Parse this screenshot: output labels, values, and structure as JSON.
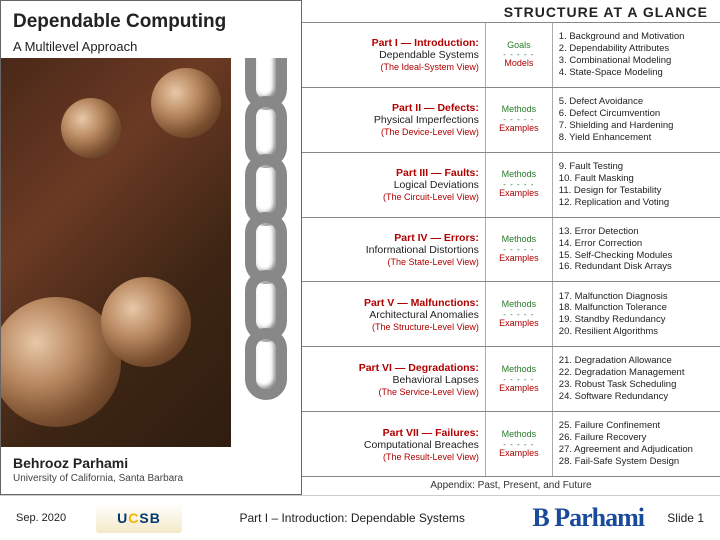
{
  "left": {
    "title": "Dependable Computing",
    "subtitle": "A Multilevel Approach",
    "author": "Behrooz Parhami",
    "affiliation": "University of California, Santa Barbara"
  },
  "right": {
    "header": "STRUCTURE AT A GLANCE",
    "appendix": "Appendix: Past, Present, and Future",
    "parts": [
      {
        "num": "Part I — Introduction:",
        "name": "Dependable Systems",
        "view": "(The Ideal-System View)",
        "midTop": "Goals",
        "midBot": "Models",
        "chapters": [
          "1. Background and Motivation",
          "2. Dependability Attributes",
          "3. Combinational Modeling",
          "4. State-Space Modeling"
        ]
      },
      {
        "num": "Part II — Defects:",
        "name": "Physical Imperfections",
        "view": "(The Device-Level View)",
        "midTop": "Methods",
        "midBot": "Examples",
        "chapters": [
          "5. Defect Avoidance",
          "6. Defect Circumvention",
          "7. Shielding and Hardening",
          "8. Yield Enhancement"
        ]
      },
      {
        "num": "Part III — Faults:",
        "name": "Logical Deviations",
        "view": "(The Circuit-Level View)",
        "midTop": "Methods",
        "midBot": "Examples",
        "chapters": [
          "9. Fault Testing",
          "10. Fault Masking",
          "11. Design for Testability",
          "12. Replication and Voting"
        ]
      },
      {
        "num": "Part IV — Errors:",
        "name": "Informational Distortions",
        "view": "(The State-Level View)",
        "midTop": "Methods",
        "midBot": "Examples",
        "chapters": [
          "13. Error Detection",
          "14. Error Correction",
          "15. Self-Checking Modules",
          "16. Redundant Disk Arrays"
        ]
      },
      {
        "num": "Part V — Malfunctions:",
        "name": "Architectural Anomalies",
        "view": "(The Structure-Level View)",
        "midTop": "Methods",
        "midBot": "Examples",
        "chapters": [
          "17. Malfunction Diagnosis",
          "18. Malfunction Tolerance",
          "19. Standby Redundancy",
          "20. Resilient Algorithms"
        ]
      },
      {
        "num": "Part VI — Degradations:",
        "name": "Behavioral Lapses",
        "view": "(The Service-Level View)",
        "midTop": "Methods",
        "midBot": "Examples",
        "chapters": [
          "21. Degradation Allowance",
          "22. Degradation Management",
          "23. Robust Task Scheduling",
          "24. Software Redundancy"
        ]
      },
      {
        "num": "Part VII — Failures:",
        "name": "Computational Breaches",
        "view": "(The Result-Level View)",
        "midTop": "Methods",
        "midBot": "Examples",
        "chapters": [
          "25. Failure Confinement",
          "26. Failure Recovery",
          "27. Agreement and Adjudication",
          "28. Fail-Safe System Design"
        ]
      }
    ]
  },
  "footer": {
    "date": "Sep. 2020",
    "logo": "UCSB",
    "center": "Part I – Introduction: Dependable Systems",
    "signature": "B Parhami",
    "slide": "Slide 1"
  },
  "style": {
    "accent_red": "#b00000",
    "accent_green": "#2a7a2a",
    "sig_blue": "#1a4a9a"
  }
}
